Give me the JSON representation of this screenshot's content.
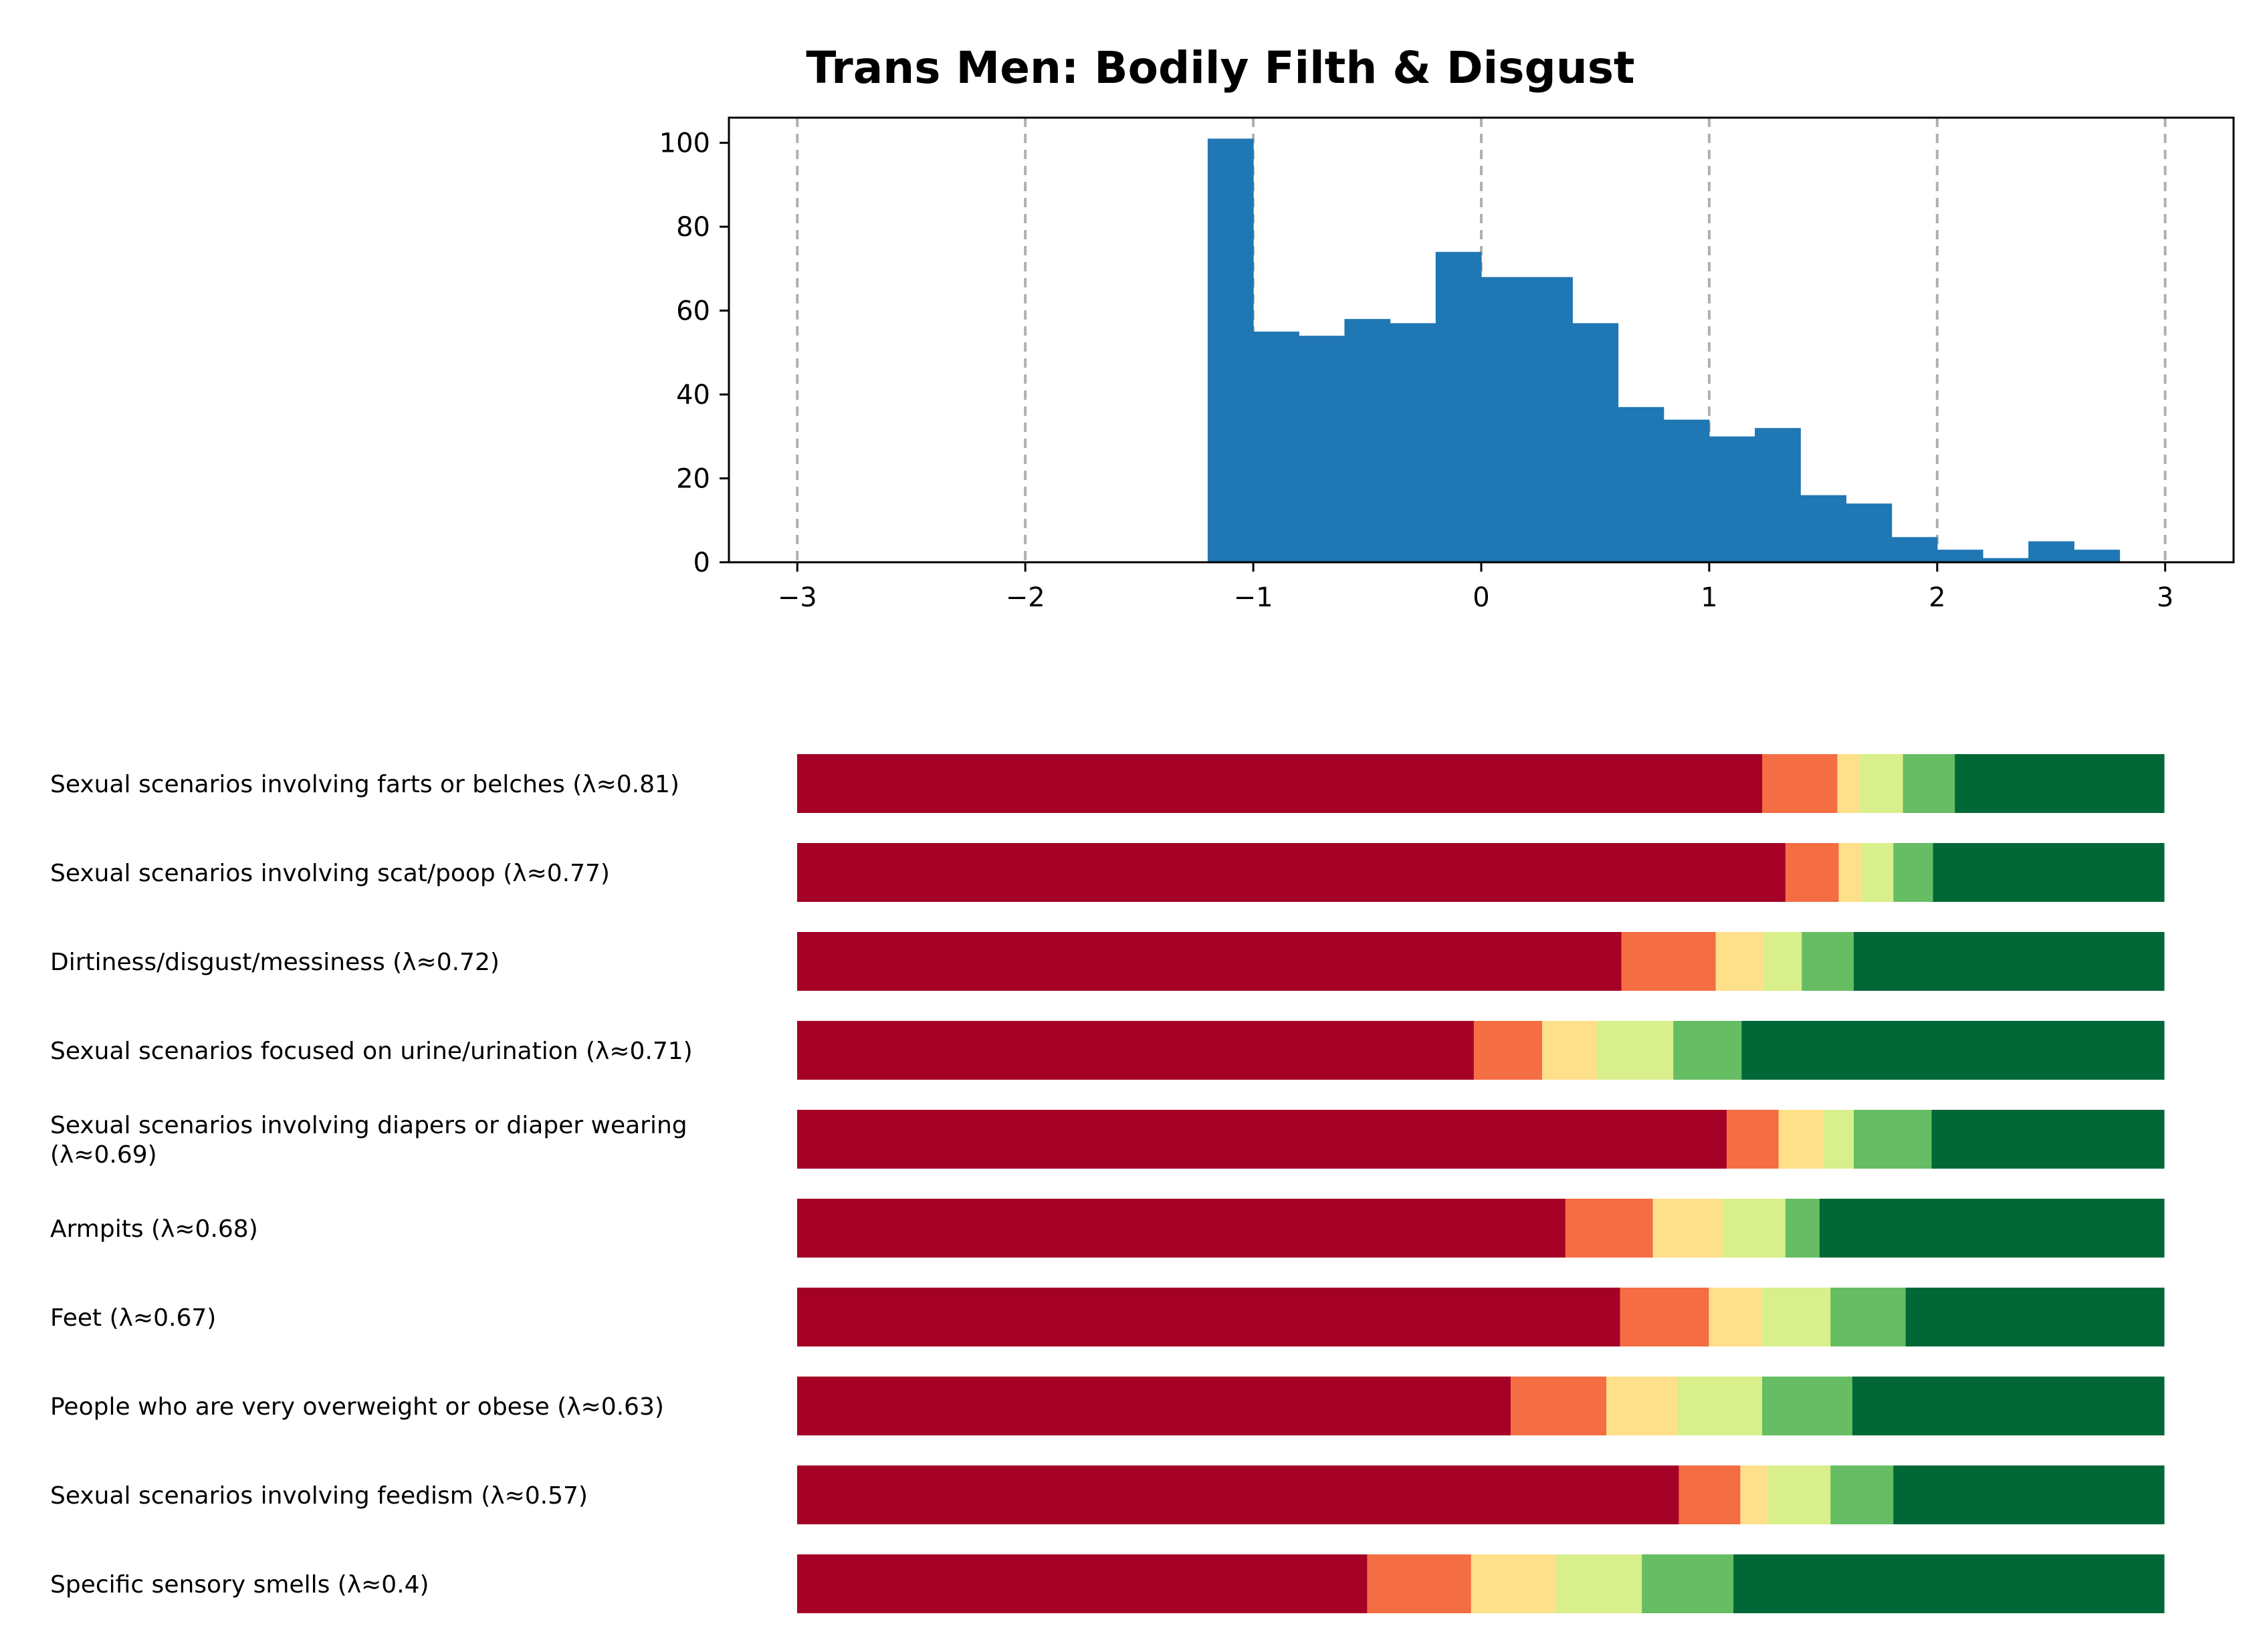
{
  "chart_data": [
    {
      "type": "histogram",
      "title": "Trans Men: Bodily Filth & Disgust",
      "xlabel": "",
      "ylabel": "",
      "xlim": [
        -3.3,
        3.3
      ],
      "ylim": [
        0,
        106
      ],
      "x_ticks": [
        "−3",
        "−2",
        "−1",
        "0",
        "1",
        "2",
        "3"
      ],
      "x_tick_values": [
        -3,
        -2,
        -1,
        0,
        1,
        2,
        3
      ],
      "y_ticks": [
        "0",
        "20",
        "40",
        "60",
        "80",
        "100"
      ],
      "y_tick_values": [
        0,
        20,
        40,
        60,
        80,
        100
      ],
      "grid": "vertical dashed gray lines at integer x",
      "bar_color": "#1f77b4",
      "bin_edges": [
        -1.2,
        -1.0,
        -0.8,
        -0.6,
        -0.4,
        -0.2,
        0.0,
        0.2,
        0.4,
        0.6,
        0.8,
        1.0,
        1.2,
        1.4,
        1.6,
        1.8,
        2.0,
        2.2,
        2.4,
        2.6,
        2.8
      ],
      "counts": [
        101,
        55,
        54,
        58,
        57,
        74,
        68,
        68,
        57,
        37,
        34,
        30,
        32,
        16,
        14,
        6,
        3,
        1,
        5,
        3
      ]
    },
    {
      "type": "bar",
      "orientation": "horizontal",
      "stacked": "100%",
      "segment_colors": [
        "#a50026",
        "#f46d43",
        "#fee08b",
        "#d9ef8b",
        "#66bd63",
        "#006837"
      ],
      "categories": [
        "Sexual scenarios involving farts or belches (λ≈0.81)",
        "Sexual scenarios involving scat/poop (λ≈0.77)",
        "Dirtiness/disgust/messiness (λ≈0.72)",
        "Sexual scenarios focused on urine/urination (λ≈0.71)",
        "Sexual scenarios involving diapers or diaper wearing (λ≈0.69)",
        "Armpits (λ≈0.68)",
        "Feet (λ≈0.67)",
        "People who are very overweight or obese (λ≈0.63)",
        "Sexual scenarios involving feedism (λ≈0.57)",
        "Specific sensory smells (λ≈0.4)"
      ],
      "category_lines": [
        [
          "Sexual scenarios involving farts or belches (λ≈0.81)"
        ],
        [
          "Sexual scenarios involving scat/poop (λ≈0.77)"
        ],
        [
          "Dirtiness/disgust/messiness (λ≈0.72)"
        ],
        [
          "Sexual scenarios focused on urine/urination (λ≈0.71)"
        ],
        [
          "Sexual scenarios involving diapers or diaper wearing",
          "(λ≈0.69)"
        ],
        [
          "Armpits (λ≈0.68)"
        ],
        [
          "Feet (λ≈0.67)"
        ],
        [
          "People who are very overweight or obese (λ≈0.63)"
        ],
        [
          "Sexual scenarios involving feedism (λ≈0.57)"
        ],
        [
          "Specific sensory smells (λ≈0.4)"
        ]
      ],
      "series_shares": [
        [
          70.6,
          5.5,
          1.6,
          3.2,
          3.8,
          15.3
        ],
        [
          72.3,
          3.9,
          1.7,
          2.3,
          2.9,
          16.9
        ],
        [
          60.3,
          6.9,
          3.5,
          2.8,
          3.8,
          22.7
        ],
        [
          49.5,
          5.0,
          4.0,
          5.6,
          5.0,
          30.9
        ],
        [
          68.0,
          3.8,
          3.3,
          2.2,
          5.7,
          17.0
        ],
        [
          56.2,
          6.4,
          5.1,
          4.6,
          2.5,
          25.2
        ],
        [
          60.2,
          6.5,
          3.9,
          5.0,
          5.5,
          18.9
        ],
        [
          52.2,
          7.0,
          5.2,
          6.2,
          6.6,
          22.8
        ],
        [
          64.5,
          4.5,
          2.0,
          4.6,
          4.6,
          19.8
        ],
        [
          41.7,
          7.6,
          6.2,
          6.3,
          6.7,
          31.5
        ]
      ]
    }
  ]
}
